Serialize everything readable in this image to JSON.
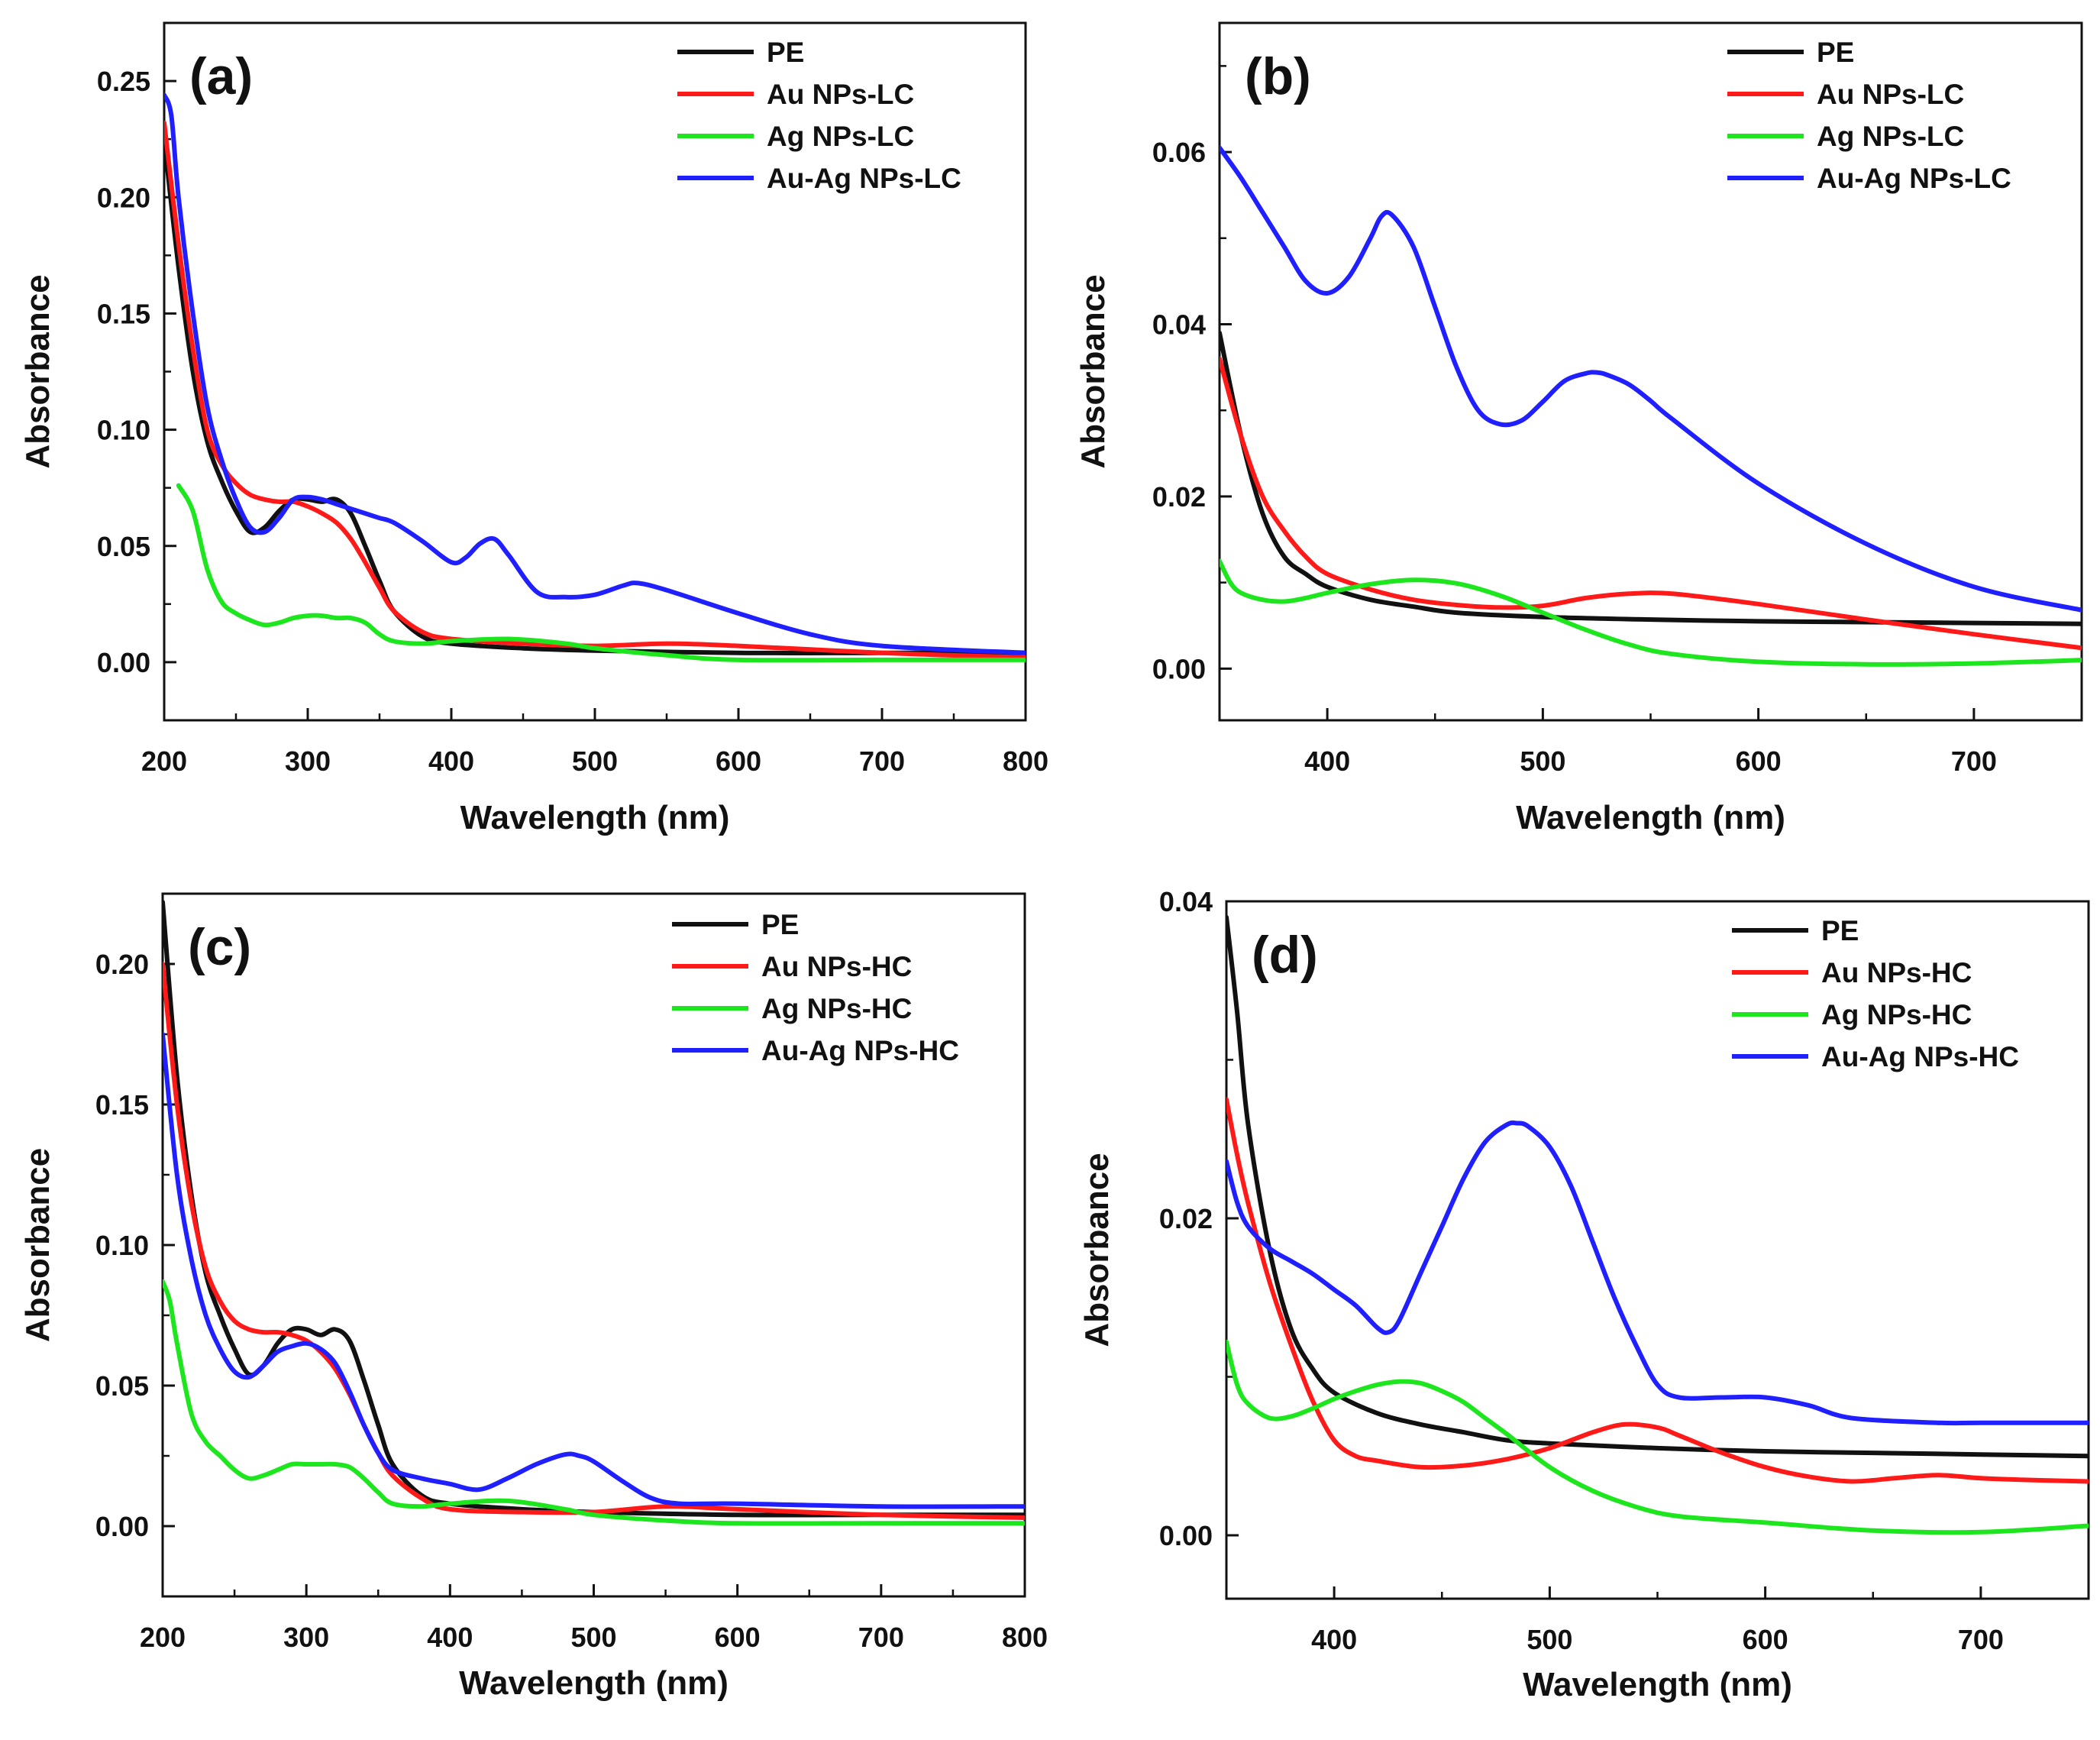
{
  "figure": {
    "colors": {
      "PE": "#111111",
      "Au": "#ff1a1a",
      "Ag": "#1ee61e",
      "AuAg": "#1f1fff"
    }
  },
  "chart_data": [
    {
      "type": "line",
      "panel_label": "(a)",
      "xlabel": "Wavelength (nm)",
      "ylabel": "Absorbance",
      "xlim": [
        200,
        800
      ],
      "ylim": [
        -0.025,
        0.275
      ],
      "xticks": [
        200,
        300,
        400,
        500,
        600,
        700,
        800
      ],
      "yticks": [
        0.0,
        0.05,
        0.1,
        0.15,
        0.2,
        0.25
      ],
      "ytick_labels": [
        "0.00",
        "0.05",
        "0.10",
        "0.15",
        "0.20",
        "0.25"
      ],
      "legend_position": "top-right",
      "series": [
        {
          "name": "PE",
          "color": "#111111",
          "x": [
            200,
            210,
            220,
            230,
            240,
            250,
            260,
            270,
            280,
            290,
            300,
            310,
            320,
            330,
            340,
            350,
            360,
            380,
            400,
            450,
            500,
            600,
            700,
            800
          ],
          "y": [
            0.225,
            0.17,
            0.125,
            0.095,
            0.078,
            0.065,
            0.056,
            0.058,
            0.065,
            0.07,
            0.07,
            0.069,
            0.07,
            0.064,
            0.05,
            0.035,
            0.022,
            0.011,
            0.008,
            0.006,
            0.005,
            0.004,
            0.004,
            0.004
          ]
        },
        {
          "name": "Au NPs-LC",
          "color": "#ff1a1a",
          "x": [
            200,
            210,
            220,
            230,
            240,
            250,
            260,
            270,
            280,
            290,
            300,
            310,
            320,
            330,
            340,
            350,
            360,
            380,
            400,
            450,
            500,
            550,
            600,
            700,
            800
          ],
          "y": [
            0.232,
            0.18,
            0.135,
            0.1,
            0.085,
            0.077,
            0.072,
            0.07,
            0.069,
            0.069,
            0.067,
            0.064,
            0.06,
            0.053,
            0.043,
            0.032,
            0.022,
            0.013,
            0.01,
            0.008,
            0.007,
            0.008,
            0.007,
            0.004,
            0.002
          ]
        },
        {
          "name": "Ag NPs-LC",
          "color": "#1ee61e",
          "x": [
            210,
            220,
            230,
            240,
            250,
            260,
            270,
            280,
            290,
            300,
            310,
            320,
            330,
            340,
            350,
            360,
            380,
            400,
            440,
            480,
            500,
            550,
            600,
            700,
            800
          ],
          "y": [
            0.076,
            0.065,
            0.04,
            0.026,
            0.021,
            0.018,
            0.016,
            0.017,
            0.019,
            0.02,
            0.02,
            0.019,
            0.019,
            0.017,
            0.012,
            0.009,
            0.008,
            0.009,
            0.01,
            0.008,
            0.006,
            0.003,
            0.001,
            0.001,
            0.001
          ]
        },
        {
          "name": "Au-Ag NPs-LC",
          "color": "#1f1fff",
          "x": [
            200,
            205,
            210,
            220,
            230,
            240,
            250,
            260,
            270,
            280,
            290,
            300,
            310,
            320,
            330,
            340,
            350,
            360,
            380,
            400,
            410,
            420,
            430,
            440,
            460,
            480,
            500,
            520,
            530,
            550,
            600,
            650,
            700,
            800
          ],
          "y": [
            0.244,
            0.235,
            0.2,
            0.15,
            0.11,
            0.087,
            0.07,
            0.058,
            0.056,
            0.062,
            0.07,
            0.071,
            0.07,
            0.068,
            0.066,
            0.064,
            0.062,
            0.06,
            0.052,
            0.043,
            0.045,
            0.051,
            0.053,
            0.046,
            0.03,
            0.028,
            0.029,
            0.033,
            0.034,
            0.031,
            0.021,
            0.012,
            0.007,
            0.004
          ]
        }
      ]
    },
    {
      "type": "line",
      "panel_label": "(b)",
      "xlabel": "Wavelength (nm)",
      "ylabel": "Absorbance",
      "xlim": [
        350,
        750
      ],
      "ylim": [
        -0.006,
        0.075
      ],
      "xticks": [
        400,
        500,
        600,
        700
      ],
      "yticks": [
        0.0,
        0.02,
        0.04,
        0.06
      ],
      "ytick_labels": [
        "0.00",
        "0.02",
        "0.04",
        "0.06"
      ],
      "legend_position": "top-right",
      "series": [
        {
          "name": "PE",
          "color": "#111111",
          "x": [
            350,
            360,
            370,
            380,
            390,
            400,
            420,
            440,
            460,
            500,
            550,
            600,
            650,
            700,
            750
          ],
          "y": [
            0.039,
            0.027,
            0.018,
            0.013,
            0.011,
            0.0095,
            0.008,
            0.0072,
            0.0065,
            0.006,
            0.0057,
            0.0055,
            0.0054,
            0.0053,
            0.0052
          ]
        },
        {
          "name": "Au NPs-LC",
          "color": "#ff1a1a",
          "x": [
            350,
            360,
            370,
            380,
            390,
            400,
            420,
            440,
            460,
            480,
            500,
            520,
            540,
            560,
            600,
            650,
            700,
            750
          ],
          "y": [
            0.036,
            0.027,
            0.02,
            0.016,
            0.013,
            0.011,
            0.0092,
            0.008,
            0.0074,
            0.0071,
            0.0073,
            0.0082,
            0.0087,
            0.0087,
            0.0075,
            0.0057,
            0.004,
            0.0024
          ]
        },
        {
          "name": "Ag NPs-LC",
          "color": "#1ee61e",
          "x": [
            350,
            355,
            360,
            370,
            380,
            390,
            400,
            420,
            440,
            460,
            480,
            500,
            520,
            540,
            560,
            600,
            650,
            700,
            750
          ],
          "y": [
            0.0125,
            0.01,
            0.0088,
            0.008,
            0.0078,
            0.0082,
            0.0088,
            0.0098,
            0.0103,
            0.0099,
            0.0085,
            0.0065,
            0.0045,
            0.0028,
            0.0017,
            0.0008,
            0.0005,
            0.0006,
            0.001
          ]
        },
        {
          "name": "Au-Ag NPs-LC",
          "color": "#1f1fff",
          "x": [
            350,
            360,
            370,
            380,
            390,
            400,
            410,
            420,
            425,
            430,
            440,
            450,
            460,
            470,
            480,
            490,
            500,
            510,
            520,
            525,
            530,
            540,
            550,
            560,
            600,
            650,
            700,
            750
          ],
          "y": [
            0.0605,
            0.057,
            0.053,
            0.049,
            0.045,
            0.0436,
            0.0455,
            0.05,
            0.0525,
            0.0527,
            0.049,
            0.042,
            0.035,
            0.03,
            0.0284,
            0.0288,
            0.031,
            0.0334,
            0.0343,
            0.0344,
            0.0341,
            0.033,
            0.0311,
            0.029,
            0.0215,
            0.0145,
            0.0095,
            0.0068
          ]
        }
      ]
    },
    {
      "type": "line",
      "panel_label": "(c)",
      "xlabel": "Wavelength (nm)",
      "ylabel": "Absorbance",
      "xlim": [
        200,
        800
      ],
      "ylim": [
        -0.025,
        0.225
      ],
      "xticks": [
        200,
        300,
        400,
        500,
        600,
        700,
        800
      ],
      "yticks": [
        0.0,
        0.05,
        0.1,
        0.15,
        0.2
      ],
      "ytick_labels": [
        "0.00",
        "0.05",
        "0.10",
        "0.15",
        "0.20"
      ],
      "legend_position": "top-right",
      "series": [
        {
          "name": "PE",
          "color": "#111111",
          "x": [
            200,
            210,
            220,
            230,
            240,
            250,
            260,
            270,
            280,
            290,
            300,
            310,
            320,
            330,
            340,
            350,
            360,
            380,
            400,
            450,
            500,
            600,
            700,
            800
          ],
          "y": [
            0.222,
            0.16,
            0.118,
            0.09,
            0.075,
            0.063,
            0.054,
            0.057,
            0.065,
            0.07,
            0.07,
            0.068,
            0.07,
            0.066,
            0.052,
            0.036,
            0.022,
            0.011,
            0.008,
            0.006,
            0.005,
            0.004,
            0.004,
            0.004
          ]
        },
        {
          "name": "Au NPs-HC",
          "color": "#ff1a1a",
          "x": [
            200,
            210,
            220,
            230,
            240,
            250,
            260,
            270,
            280,
            290,
            300,
            310,
            320,
            330,
            340,
            350,
            360,
            380,
            400,
            450,
            500,
            550,
            600,
            700,
            800
          ],
          "y": [
            0.2,
            0.15,
            0.115,
            0.092,
            0.08,
            0.073,
            0.07,
            0.069,
            0.069,
            0.068,
            0.066,
            0.062,
            0.056,
            0.047,
            0.036,
            0.026,
            0.018,
            0.01,
            0.006,
            0.005,
            0.005,
            0.007,
            0.006,
            0.004,
            0.003
          ]
        },
        {
          "name": "Ag NPs-HC",
          "color": "#1ee61e",
          "x": [
            200,
            205,
            210,
            220,
            230,
            240,
            250,
            260,
            270,
            280,
            290,
            300,
            310,
            320,
            330,
            340,
            350,
            360,
            380,
            400,
            440,
            480,
            500,
            550,
            600,
            700,
            800
          ],
          "y": [
            0.087,
            0.08,
            0.065,
            0.04,
            0.03,
            0.025,
            0.02,
            0.017,
            0.018,
            0.02,
            0.022,
            0.022,
            0.022,
            0.022,
            0.021,
            0.017,
            0.012,
            0.008,
            0.007,
            0.008,
            0.009,
            0.006,
            0.004,
            0.002,
            0.001,
            0.001,
            0.001
          ]
        },
        {
          "name": "Au-Ag NPs-HC",
          "color": "#1f1fff",
          "x": [
            200,
            210,
            220,
            230,
            240,
            250,
            260,
            270,
            280,
            290,
            300,
            310,
            320,
            330,
            340,
            350,
            360,
            380,
            400,
            420,
            440,
            460,
            480,
            490,
            500,
            520,
            540,
            560,
            600,
            700,
            800
          ],
          "y": [
            0.175,
            0.125,
            0.095,
            0.075,
            0.063,
            0.055,
            0.053,
            0.057,
            0.062,
            0.064,
            0.065,
            0.063,
            0.058,
            0.048,
            0.036,
            0.026,
            0.02,
            0.017,
            0.015,
            0.013,
            0.017,
            0.022,
            0.0255,
            0.025,
            0.023,
            0.016,
            0.01,
            0.008,
            0.008,
            0.007,
            0.007
          ]
        }
      ]
    },
    {
      "type": "line",
      "panel_label": "(d)",
      "xlabel": "Wavelength (nm)",
      "ylabel": "Absorbance",
      "xlim": [
        350,
        750
      ],
      "ylim": [
        -0.004,
        0.04
      ],
      "xticks": [
        400,
        500,
        600,
        700
      ],
      "yticks": [
        0.0,
        0.02,
        0.04
      ],
      "ytick_labels": [
        "0.00",
        "0.02",
        "0.04"
      ],
      "legend_position": "top-right",
      "series": [
        {
          "name": "PE",
          "color": "#111111",
          "x": [
            350,
            355,
            360,
            370,
            380,
            390,
            400,
            420,
            440,
            460,
            480,
            500,
            550,
            600,
            650,
            700,
            750
          ],
          "y": [
            0.039,
            0.033,
            0.026,
            0.018,
            0.013,
            0.0105,
            0.009,
            0.0077,
            0.007,
            0.0065,
            0.006,
            0.0058,
            0.0055,
            0.0053,
            0.0052,
            0.0051,
            0.005
          ]
        },
        {
          "name": "Au NPs-HC",
          "color": "#ff1a1a",
          "x": [
            350,
            355,
            360,
            370,
            380,
            390,
            400,
            410,
            420,
            440,
            460,
            480,
            500,
            520,
            535,
            550,
            560,
            580,
            600,
            620,
            640,
            660,
            680,
            700,
            720,
            750
          ],
          "y": [
            0.0275,
            0.024,
            0.021,
            0.016,
            0.012,
            0.0085,
            0.006,
            0.005,
            0.0047,
            0.0043,
            0.0044,
            0.0048,
            0.0055,
            0.0065,
            0.007,
            0.0068,
            0.0063,
            0.0052,
            0.0043,
            0.0037,
            0.0034,
            0.0036,
            0.0038,
            0.0036,
            0.0035,
            0.0034
          ]
        },
        {
          "name": "Ag NPs-HC",
          "color": "#1ee61e",
          "x": [
            350,
            355,
            360,
            370,
            380,
            390,
            400,
            410,
            420,
            430,
            440,
            450,
            460,
            470,
            480,
            500,
            520,
            540,
            560,
            600,
            650,
            700,
            750
          ],
          "y": [
            0.0122,
            0.0095,
            0.0083,
            0.0074,
            0.0075,
            0.008,
            0.0086,
            0.0091,
            0.0095,
            0.0097,
            0.0096,
            0.0091,
            0.0084,
            0.0074,
            0.0064,
            0.0043,
            0.0028,
            0.0018,
            0.0012,
            0.0008,
            0.0003,
            0.0002,
            0.0006
          ]
        },
        {
          "name": "Au-Ag NPs-HC",
          "color": "#1f1fff",
          "x": [
            350,
            355,
            360,
            370,
            380,
            390,
            400,
            410,
            420,
            425,
            430,
            440,
            450,
            460,
            470,
            480,
            485,
            490,
            500,
            510,
            520,
            530,
            540,
            550,
            560,
            580,
            600,
            620,
            640,
            680,
            700,
            750
          ],
          "y": [
            0.0236,
            0.021,
            0.0195,
            0.0181,
            0.0173,
            0.0165,
            0.0155,
            0.0145,
            0.0131,
            0.0128,
            0.0135,
            0.0165,
            0.0195,
            0.0225,
            0.0248,
            0.0259,
            0.026,
            0.0258,
            0.0245,
            0.022,
            0.0185,
            0.015,
            0.012,
            0.0095,
            0.0087,
            0.0087,
            0.0087,
            0.0082,
            0.0074,
            0.0071,
            0.0071,
            0.0071
          ]
        }
      ]
    }
  ]
}
